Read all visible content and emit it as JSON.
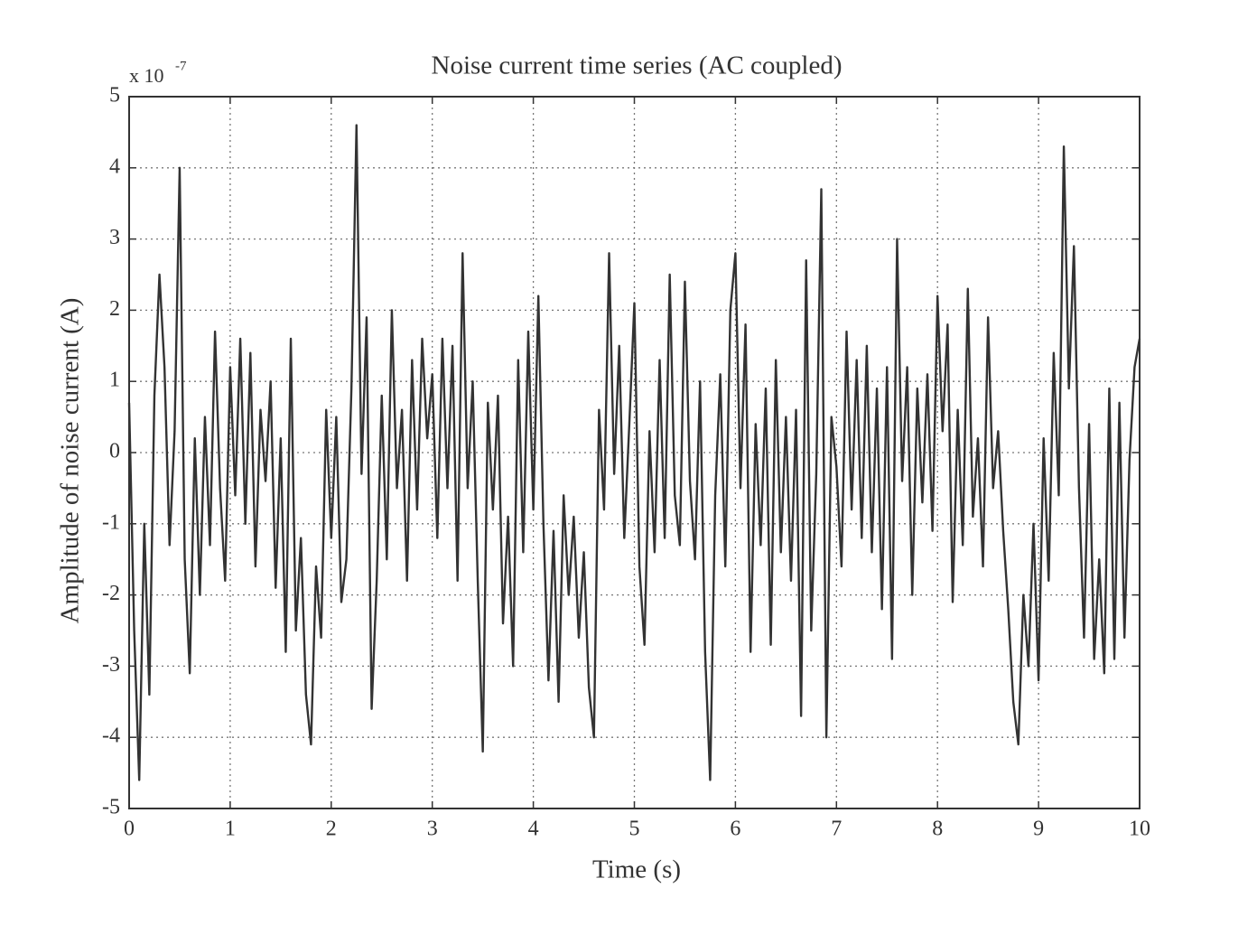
{
  "chart_data": {
    "type": "line",
    "title": "Noise current time series (AC coupled)",
    "x_label": "Time (s)",
    "y_label": "Amplitude of noise current (A)",
    "y_multiplier": {
      "base": "x 10",
      "exponent": "-7"
    },
    "xlim": [
      0,
      10
    ],
    "xticks": [
      0,
      1,
      2,
      3,
      4,
      5,
      6,
      7,
      8,
      9,
      10
    ],
    "ylim": [
      -5,
      5
    ],
    "yticks": [
      -5,
      -4,
      -3,
      -2,
      -1,
      0,
      1,
      2,
      3,
      4,
      5
    ],
    "grid": true,
    "x": [
      0,
      0.05,
      0.1,
      0.15,
      0.2,
      0.25,
      0.3,
      0.35,
      0.4,
      0.45,
      0.5,
      0.55,
      0.6,
      0.65,
      0.7,
      0.75,
      0.8,
      0.85,
      0.9,
      0.95,
      1,
      1.05,
      1.1,
      1.15,
      1.2,
      1.25,
      1.3,
      1.35,
      1.4,
      1.45,
      1.5,
      1.55,
      1.6,
      1.65,
      1.7,
      1.75,
      1.8,
      1.85,
      1.9,
      1.95,
      2,
      2.05,
      2.1,
      2.15,
      2.2,
      2.25,
      2.3,
      2.35,
      2.4,
      2.45,
      2.5,
      2.55,
      2.6,
      2.65,
      2.7,
      2.75,
      2.8,
      2.85,
      2.9,
      2.95,
      3,
      3.05,
      3.1,
      3.15,
      3.2,
      3.25,
      3.3,
      3.35,
      3.4,
      3.45,
      3.5,
      3.55,
      3.6,
      3.65,
      3.7,
      3.75,
      3.8,
      3.85,
      3.9,
      3.95,
      4,
      4.05,
      4.1,
      4.15,
      4.2,
      4.25,
      4.3,
      4.35,
      4.4,
      4.45,
      4.5,
      4.55,
      4.6,
      4.65,
      4.7,
      4.75,
      4.8,
      4.85,
      4.9,
      4.95,
      5,
      5.05,
      5.1,
      5.15,
      5.2,
      5.25,
      5.3,
      5.35,
      5.4,
      5.45,
      5.5,
      5.55,
      5.6,
      5.65,
      5.7,
      5.75,
      5.8,
      5.85,
      5.9,
      5.95,
      6,
      6.05,
      6.1,
      6.15,
      6.2,
      6.25,
      6.3,
      6.35,
      6.4,
      6.45,
      6.5,
      6.55,
      6.6,
      6.65,
      6.7,
      6.75,
      6.8,
      6.85,
      6.9,
      6.95,
      7,
      7.05,
      7.1,
      7.15,
      7.2,
      7.25,
      7.3,
      7.35,
      7.4,
      7.45,
      7.5,
      7.55,
      7.6,
      7.65,
      7.7,
      7.75,
      7.8,
      7.85,
      7.9,
      7.95,
      8,
      8.05,
      8.1,
      8.15,
      8.2,
      8.25,
      8.3,
      8.35,
      8.4,
      8.45,
      8.5,
      8.55,
      8.6,
      8.65,
      8.7,
      8.75,
      8.8,
      8.85,
      8.9,
      8.95,
      9,
      9.05,
      9.1,
      9.15,
      9.2,
      9.25,
      9.3,
      9.35,
      9.4,
      9.45,
      9.5,
      9.55,
      9.6,
      9.65,
      9.7,
      9.75,
      9.8,
      9.85,
      9.9,
      9.95,
      10
    ],
    "series": [
      {
        "color": "#333333",
        "values": [
          0.7,
          -2.5,
          -4.6,
          -1.0,
          -3.4,
          0.8,
          2.5,
          1.2,
          -1.3,
          0.3,
          4.0,
          -1.5,
          -3.1,
          0.2,
          -2.0,
          0.5,
          -1.3,
          1.7,
          -0.5,
          -1.8,
          1.2,
          -0.6,
          1.6,
          -1.0,
          1.4,
          -1.6,
          0.6,
          -0.4,
          1.0,
          -1.9,
          0.2,
          -2.8,
          1.6,
          -2.5,
          -1.2,
          -3.4,
          -4.1,
          -1.6,
          -2.6,
          0.6,
          -1.2,
          0.5,
          -2.1,
          -1.5,
          0.9,
          4.6,
          -0.3,
          1.9,
          -3.6,
          -1.8,
          0.8,
          -1.5,
          2.0,
          -0.5,
          0.6,
          -1.8,
          1.3,
          -0.8,
          1.6,
          0.2,
          1.1,
          -1.2,
          1.6,
          -0.5,
          1.5,
          -1.8,
          2.8,
          -0.5,
          1.0,
          -1.8,
          -4.2,
          0.7,
          -0.8,
          0.8,
          -2.4,
          -0.9,
          -3.0,
          1.3,
          -1.4,
          1.7,
          -0.8,
          2.2,
          -1.0,
          -3.2,
          -1.1,
          -3.5,
          -0.6,
          -2.0,
          -0.9,
          -2.6,
          -1.4,
          -3.3,
          -4.0,
          0.6,
          -0.8,
          2.8,
          -0.3,
          1.5,
          -1.2,
          0.4,
          2.1,
          -1.6,
          -2.7,
          0.3,
          -1.4,
          1.3,
          -1.2,
          2.5,
          -0.6,
          -1.3,
          2.4,
          -0.4,
          -1.5,
          1.0,
          -2.8,
          -4.6,
          -0.6,
          1.1,
          -1.6,
          2.0,
          2.8,
          -0.5,
          1.8,
          -2.8,
          0.4,
          -1.3,
          0.9,
          -2.7,
          1.3,
          -1.4,
          0.5,
          -1.8,
          0.6,
          -3.7,
          2.7,
          -2.5,
          -0.3,
          3.7,
          -4.0,
          0.5,
          -0.2,
          -1.6,
          1.7,
          -0.8,
          1.3,
          -1.2,
          1.5,
          -1.4,
          0.9,
          -2.2,
          1.2,
          -2.9,
          3.0,
          -0.4,
          1.2,
          -2.0,
          0.9,
          -0.7,
          1.1,
          -1.1,
          2.2,
          0.3,
          1.8,
          -2.1,
          0.6,
          -1.3,
          2.3,
          -0.9,
          0.2,
          -1.6,
          1.9,
          -0.5,
          0.3,
          -1.1,
          -2.2,
          -3.5,
          -4.1,
          -2.0,
          -3.0,
          -1.0,
          -3.2,
          0.2,
          -1.8,
          1.4,
          -0.6,
          4.3,
          0.9,
          2.9,
          -0.5,
          -2.6,
          0.4,
          -2.9,
          -1.5,
          -3.1,
          0.9,
          -2.9,
          0.7,
          -2.6,
          -0.1,
          1.2,
          1.6
        ]
      }
    ]
  }
}
